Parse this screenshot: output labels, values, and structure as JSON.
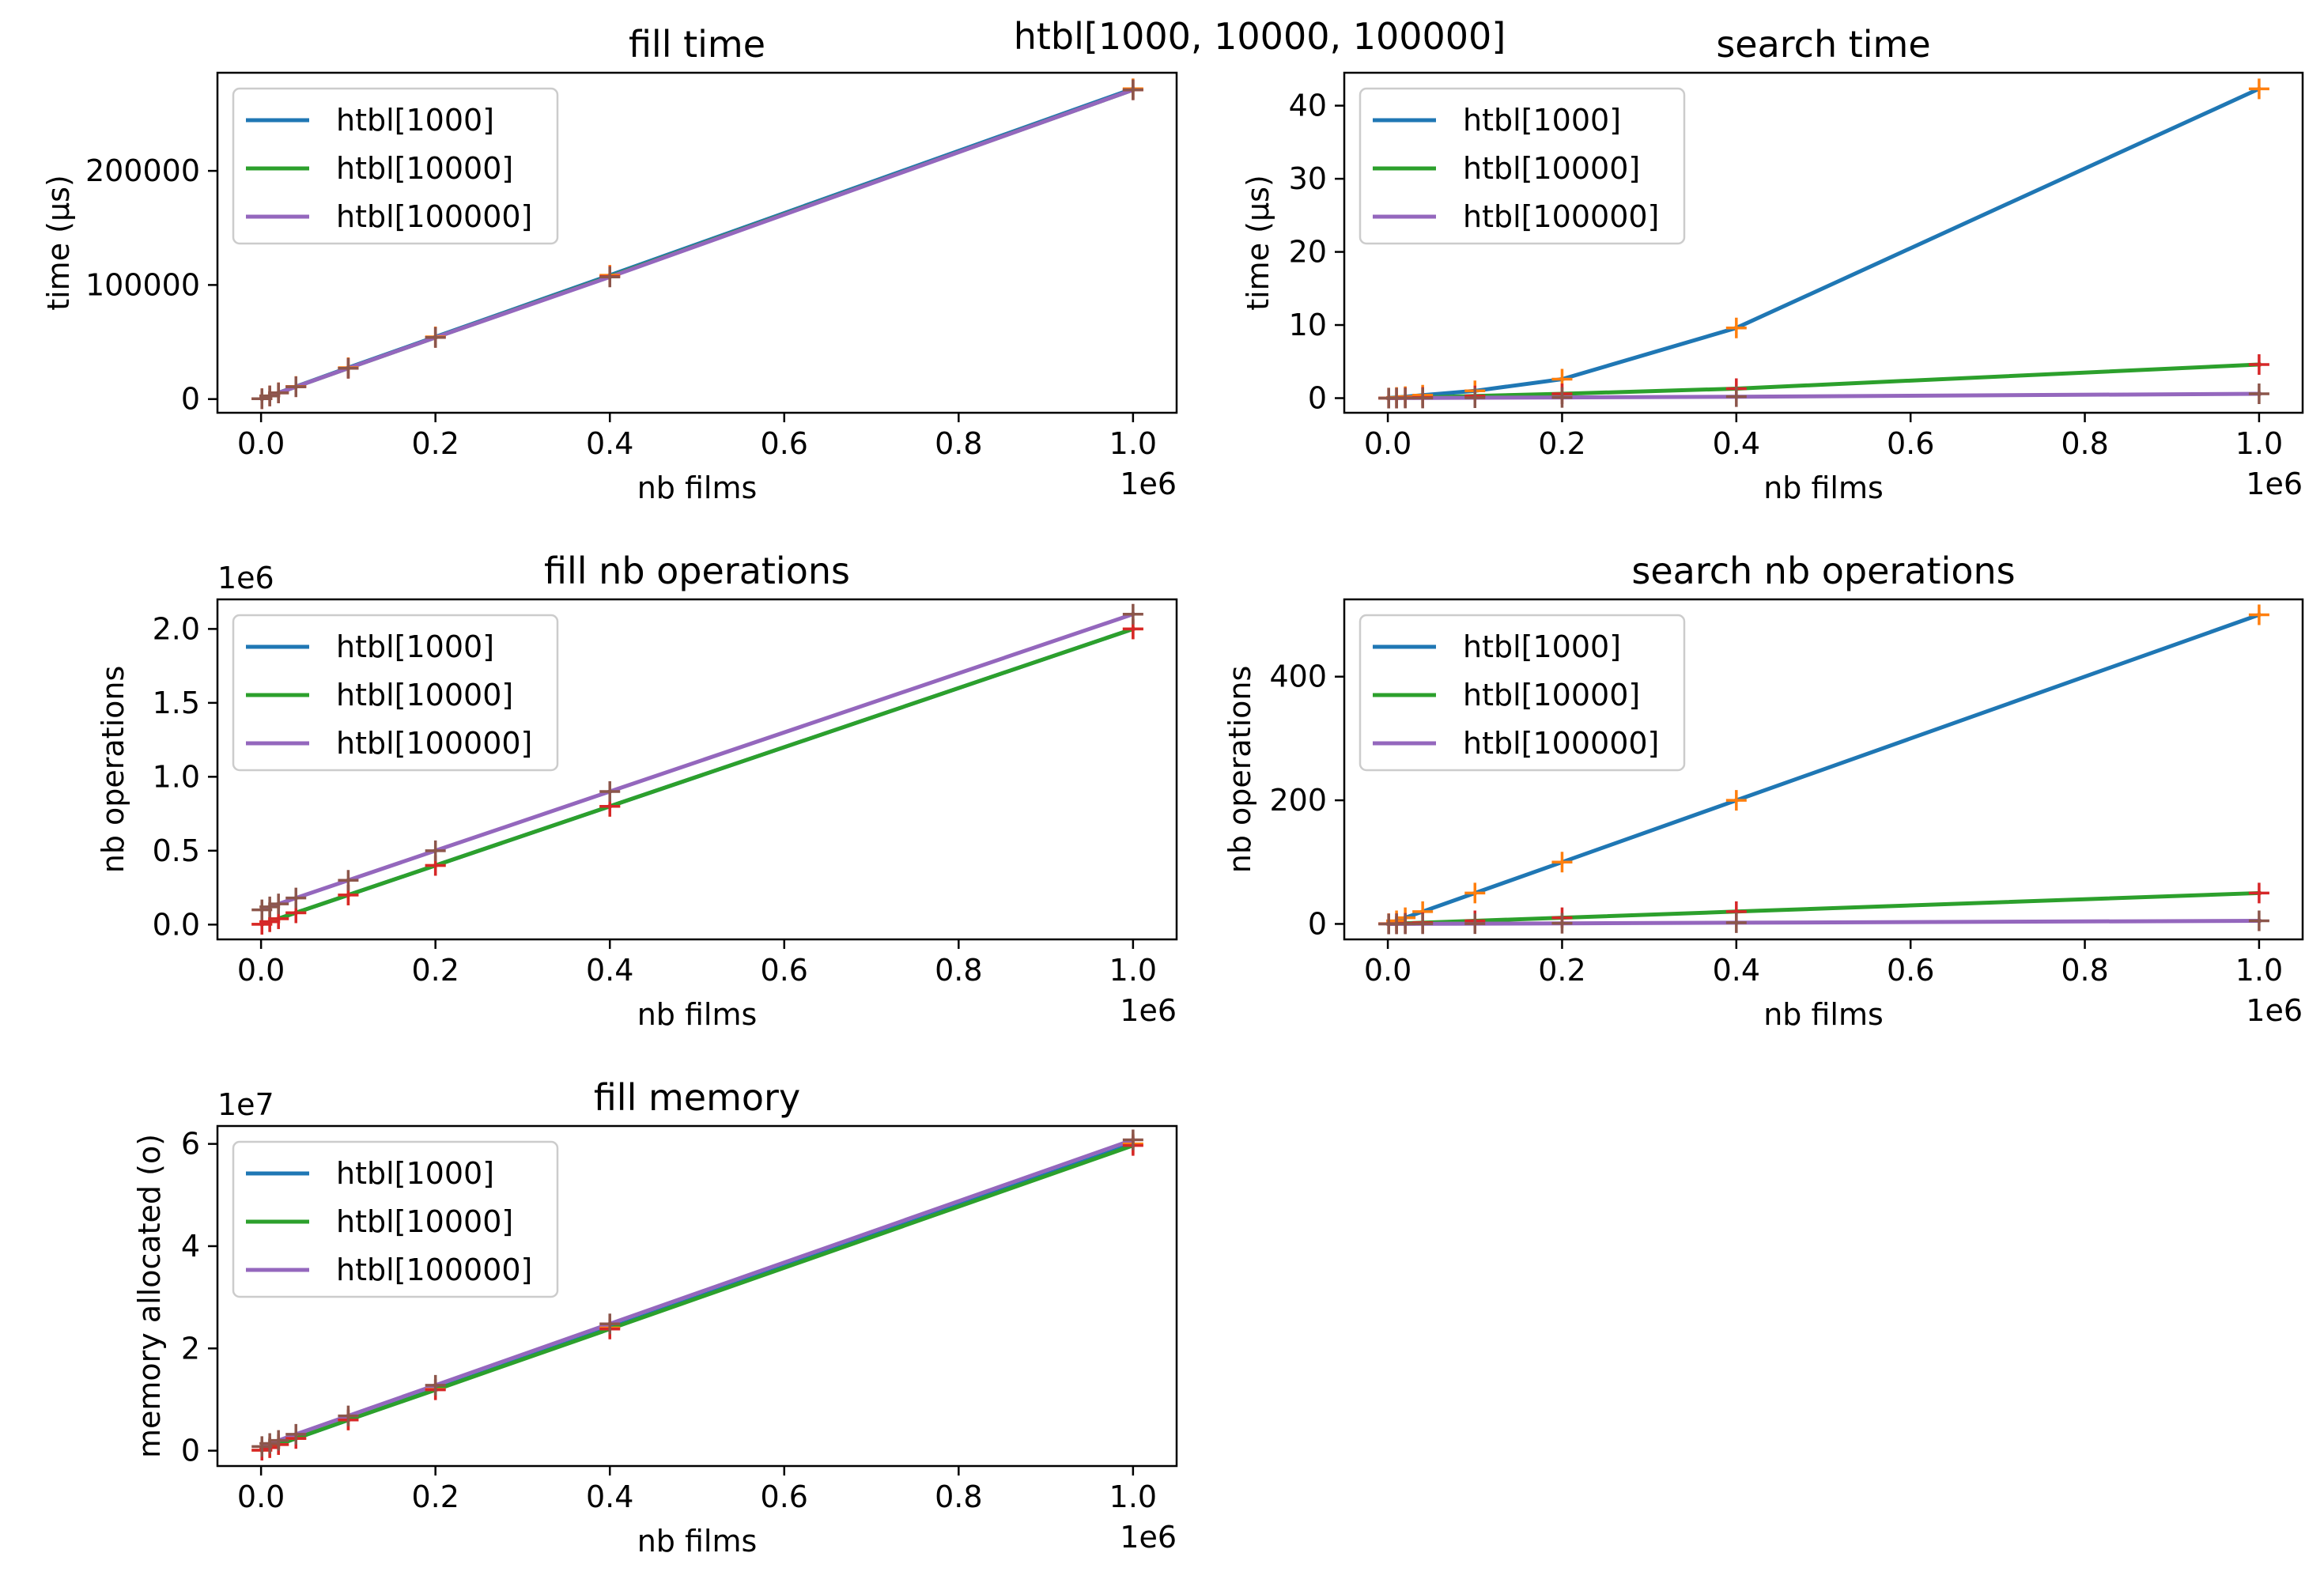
{
  "figure": {
    "suptitle": "htbl[1000, 10000, 100000]",
    "marker_colors": [
      "#ff7f0e",
      "#d62728",
      "#8c564b"
    ]
  },
  "chart_data": [
    {
      "id": "fill-time",
      "type": "line",
      "title": "fill time",
      "xlabel": "nb films",
      "ylabel": "time (µs)",
      "x_offset_text": "1e6",
      "y_offset_text": "",
      "xlim": [
        -0.05,
        1.05
      ],
      "ylim": [
        -12000,
        286000
      ],
      "xticks": [
        0,
        0.2,
        0.4,
        0.6,
        0.8,
        1.0
      ],
      "xtick_labels": [
        "0.0",
        "0.2",
        "0.4",
        "0.6",
        "0.8",
        "1.0"
      ],
      "yticks": [
        0,
        100000,
        200000
      ],
      "ytick_labels": [
        "0",
        "100000",
        "200000"
      ],
      "legend_position": "upper-left",
      "grid": false,
      "x": [
        0.001,
        0.01,
        0.02,
        0.04,
        0.1,
        0.2,
        0.4,
        1.0
      ],
      "series": [
        {
          "name": "htbl[1000]",
          "color": "#1f77b4",
          "values": [
            300,
            2800,
            5500,
            11000,
            27500,
            54500,
            108500,
            272000
          ]
        },
        {
          "name": "htbl[10000]",
          "color": "#2ca02c",
          "values": [
            300,
            2700,
            5400,
            10800,
            27000,
            54000,
            107500,
            271000
          ]
        },
        {
          "name": "htbl[100000]",
          "color": "#9467bd",
          "values": [
            300,
            2700,
            5400,
            10800,
            27000,
            54000,
            107000,
            271000
          ]
        }
      ]
    },
    {
      "id": "search-time",
      "type": "line",
      "title": "search time",
      "xlabel": "nb films",
      "ylabel": "time (µs)",
      "x_offset_text": "1e6",
      "y_offset_text": "",
      "xlim": [
        -0.05,
        1.05
      ],
      "ylim": [
        -2,
        44.5
      ],
      "xticks": [
        0,
        0.2,
        0.4,
        0.6,
        0.8,
        1.0
      ],
      "xtick_labels": [
        "0.0",
        "0.2",
        "0.4",
        "0.6",
        "0.8",
        "1.0"
      ],
      "yticks": [
        0,
        10,
        20,
        30,
        40
      ],
      "ytick_labels": [
        "0",
        "10",
        "20",
        "30",
        "40"
      ],
      "legend_position": "upper-left",
      "grid": false,
      "x": [
        0.001,
        0.01,
        0.02,
        0.04,
        0.1,
        0.2,
        0.4,
        1.0
      ],
      "series": [
        {
          "name": "htbl[1000]",
          "color": "#1f77b4",
          "values": [
            0.02,
            0.1,
            0.2,
            0.4,
            1.0,
            2.6,
            9.6,
            42.3
          ]
        },
        {
          "name": "htbl[10000]",
          "color": "#2ca02c",
          "values": [
            0.0,
            0.02,
            0.05,
            0.1,
            0.3,
            0.6,
            1.3,
            4.6
          ]
        },
        {
          "name": "htbl[100000]",
          "color": "#9467bd",
          "values": [
            0.0,
            0.0,
            0.01,
            0.02,
            0.05,
            0.1,
            0.2,
            0.6
          ]
        }
      ]
    },
    {
      "id": "fill-nb-operations",
      "type": "line",
      "title": "fill nb operations",
      "xlabel": "nb films",
      "ylabel": "nb operations",
      "x_offset_text": "1e6",
      "y_offset_text": "1e6",
      "xlim": [
        -0.05,
        1.05
      ],
      "ylim": [
        -0.1,
        2.2
      ],
      "xticks": [
        0,
        0.2,
        0.4,
        0.6,
        0.8,
        1.0
      ],
      "xtick_labels": [
        "0.0",
        "0.2",
        "0.4",
        "0.6",
        "0.8",
        "1.0"
      ],
      "yticks": [
        0,
        0.5,
        1.0,
        1.5,
        2.0
      ],
      "ytick_labels": [
        "0.0",
        "0.5",
        "1.0",
        "1.5",
        "2.0"
      ],
      "legend_position": "upper-left",
      "grid": false,
      "x": [
        0.001,
        0.01,
        0.02,
        0.04,
        0.1,
        0.2,
        0.4,
        1.0
      ],
      "series": [
        {
          "name": "htbl[1000]",
          "color": "#1f77b4",
          "values": [
            0.002,
            0.02,
            0.04,
            0.08,
            0.2,
            0.4,
            0.8,
            2.0
          ]
        },
        {
          "name": "htbl[10000]",
          "color": "#2ca02c",
          "values": [
            0.002,
            0.02,
            0.04,
            0.08,
            0.2,
            0.4,
            0.8,
            2.0
          ]
        },
        {
          "name": "htbl[100000]",
          "color": "#9467bd",
          "values": [
            0.1,
            0.12,
            0.14,
            0.18,
            0.3,
            0.5,
            0.9,
            2.1
          ]
        }
      ]
    },
    {
      "id": "search-nb-operations",
      "type": "line",
      "title": "search nb operations",
      "xlabel": "nb films",
      "ylabel": "nb operations",
      "x_offset_text": "1e6",
      "y_offset_text": "",
      "xlim": [
        -0.05,
        1.05
      ],
      "ylim": [
        -25,
        525
      ],
      "xticks": [
        0,
        0.2,
        0.4,
        0.6,
        0.8,
        1.0
      ],
      "xtick_labels": [
        "0.0",
        "0.2",
        "0.4",
        "0.6",
        "0.8",
        "1.0"
      ],
      "yticks": [
        0,
        200,
        400
      ],
      "ytick_labels": [
        "0",
        "200",
        "400"
      ],
      "legend_position": "upper-left",
      "grid": false,
      "x": [
        0.001,
        0.01,
        0.02,
        0.04,
        0.1,
        0.2,
        0.4,
        1.0
      ],
      "series": [
        {
          "name": "htbl[1000]",
          "color": "#1f77b4",
          "values": [
            0.5,
            5,
            10,
            20,
            50,
            100,
            200,
            500
          ]
        },
        {
          "name": "htbl[10000]",
          "color": "#2ca02c",
          "values": [
            0.05,
            0.5,
            1,
            2,
            5,
            10,
            20,
            50
          ]
        },
        {
          "name": "htbl[100000]",
          "color": "#9467bd",
          "values": [
            0.0,
            0.05,
            0.1,
            0.2,
            0.5,
            1,
            2,
            5
          ]
        }
      ]
    },
    {
      "id": "fill-memory",
      "type": "line",
      "title": "fill memory",
      "xlabel": "nb films",
      "ylabel": "memory allocated (o)",
      "x_offset_text": "1e6",
      "y_offset_text": "1e7",
      "xlim": [
        -0.05,
        1.05
      ],
      "ylim": [
        -0.3,
        6.35
      ],
      "xticks": [
        0,
        0.2,
        0.4,
        0.6,
        0.8,
        1.0
      ],
      "xtick_labels": [
        "0.0",
        "0.2",
        "0.4",
        "0.6",
        "0.8",
        "1.0"
      ],
      "yticks": [
        0,
        2,
        4,
        6
      ],
      "ytick_labels": [
        "0",
        "2",
        "4",
        "6"
      ],
      "legend_position": "upper-left",
      "grid": false,
      "x": [
        0.001,
        0.01,
        0.02,
        0.04,
        0.1,
        0.2,
        0.4,
        1.0
      ],
      "series": [
        {
          "name": "htbl[1000]",
          "color": "#1f77b4",
          "values": [
            0.01,
            0.06,
            0.12,
            0.24,
            0.6,
            1.2,
            2.4,
            6.0
          ]
        },
        {
          "name": "htbl[10000]",
          "color": "#2ca02c",
          "values": [
            0.01,
            0.06,
            0.12,
            0.24,
            0.6,
            1.19,
            2.38,
            5.97
          ]
        },
        {
          "name": "htbl[100000]",
          "color": "#9467bd",
          "values": [
            0.08,
            0.14,
            0.2,
            0.32,
            0.68,
            1.28,
            2.48,
            6.08
          ]
        }
      ]
    }
  ]
}
